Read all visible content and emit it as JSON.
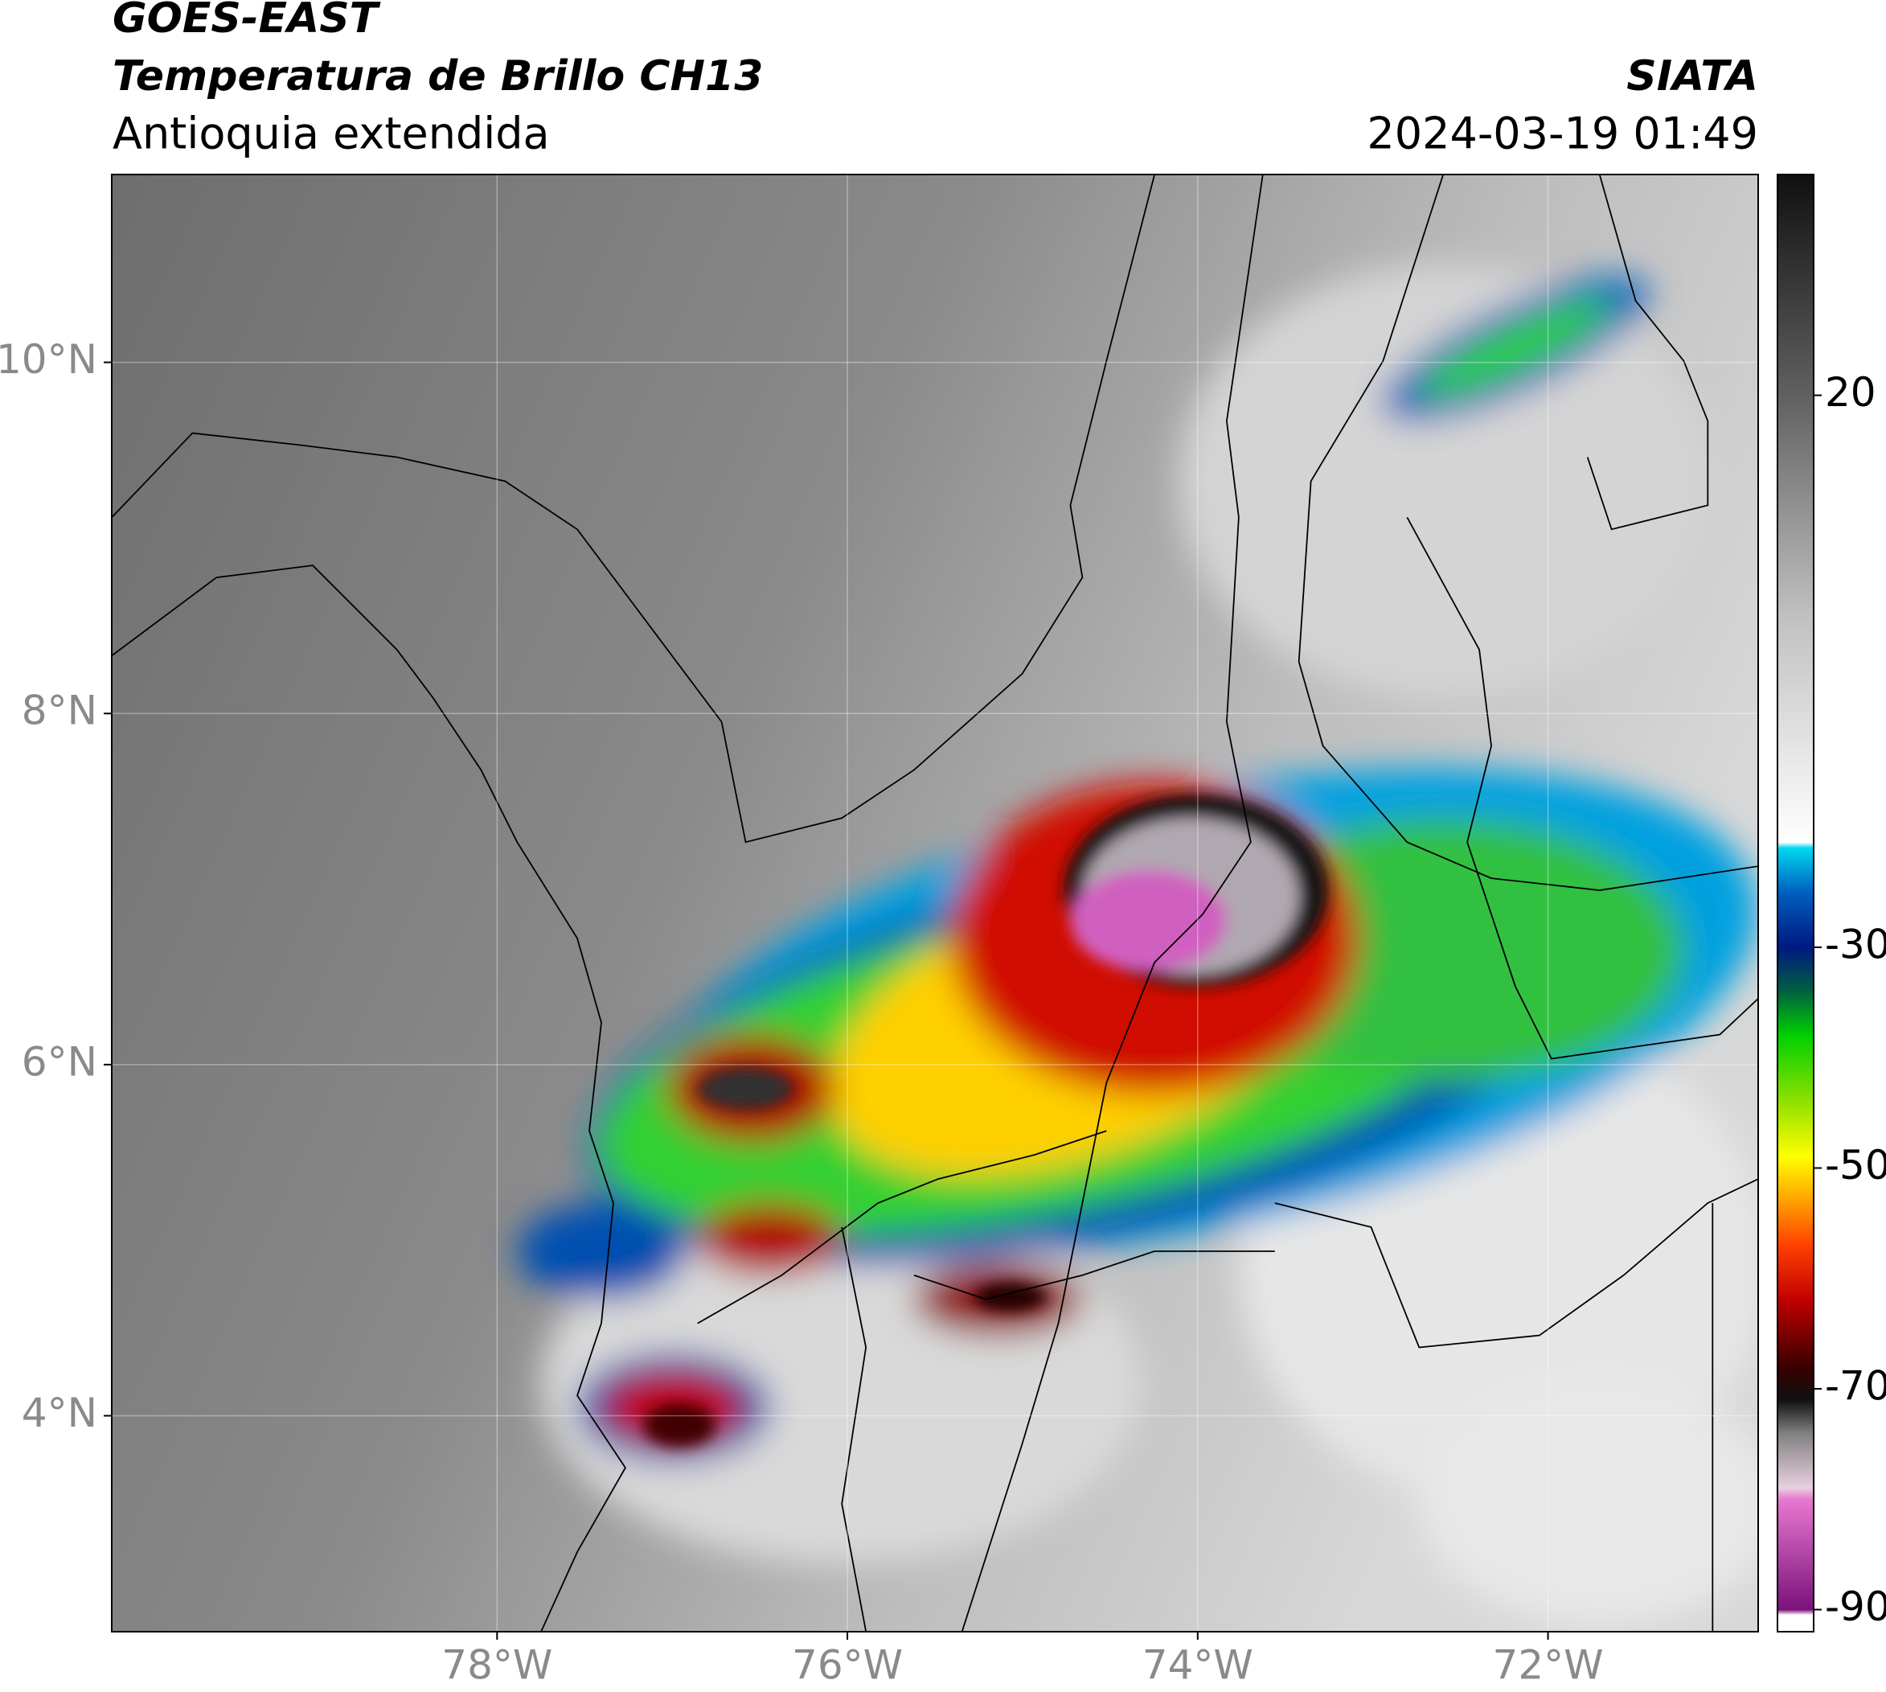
{
  "header": {
    "title": "GOES-EAST",
    "subtitle": "Temperatura de Brillo CH13",
    "region": "Antioquia extendida",
    "source": "SIATA",
    "datetime": "2024-03-19 01:49"
  },
  "map": {
    "lonlim": [
      -80.2,
      -70.8
    ],
    "latlim": [
      2.77,
      11.07
    ],
    "lonticks": [
      {
        "value": -78,
        "label": "78°W"
      },
      {
        "value": -76,
        "label": "76°W"
      },
      {
        "value": -74,
        "label": "74°W"
      },
      {
        "value": -72,
        "label": "72°W"
      }
    ],
    "latticks": [
      {
        "value": 4,
        "label": "4°N"
      },
      {
        "value": 6,
        "label": "6°N"
      },
      {
        "value": 8,
        "label": "8°N"
      },
      {
        "value": 10,
        "label": "10°N"
      }
    ],
    "grid": true,
    "colorbar": {
      "range": [
        -92,
        40
      ],
      "ticks": [
        -90,
        -70,
        -50,
        -30,
        20
      ],
      "colormap": [
        {
          "value": -92,
          "color": "#ffffff"
        },
        {
          "value": -90.5,
          "color": "#ffffff"
        },
        {
          "value": -90,
          "color": "#7a127a"
        },
        {
          "value": -80,
          "color": "#e878d0"
        },
        {
          "value": -79,
          "color": "#e8d0e0"
        },
        {
          "value": -74,
          "color": "#808080"
        },
        {
          "value": -71,
          "color": "#101010"
        },
        {
          "value": -68,
          "color": "#3a0000"
        },
        {
          "value": -62,
          "color": "#c00000"
        },
        {
          "value": -57,
          "color": "#ff4000"
        },
        {
          "value": -53,
          "color": "#ffa000"
        },
        {
          "value": -49,
          "color": "#ffff00"
        },
        {
          "value": -44,
          "color": "#90e000"
        },
        {
          "value": -38,
          "color": "#00d000"
        },
        {
          "value": -34,
          "color": "#006040"
        },
        {
          "value": -30,
          "color": "#001880"
        },
        {
          "value": -25,
          "color": "#0060c0"
        },
        {
          "value": -21,
          "color": "#00d8f0"
        },
        {
          "value": -20.5,
          "color": "#ffffff"
        },
        {
          "value": 0,
          "color": "#c0c0c0"
        },
        {
          "value": 20,
          "color": "#606060"
        },
        {
          "value": 40,
          "color": "#101010"
        }
      ]
    }
  }
}
